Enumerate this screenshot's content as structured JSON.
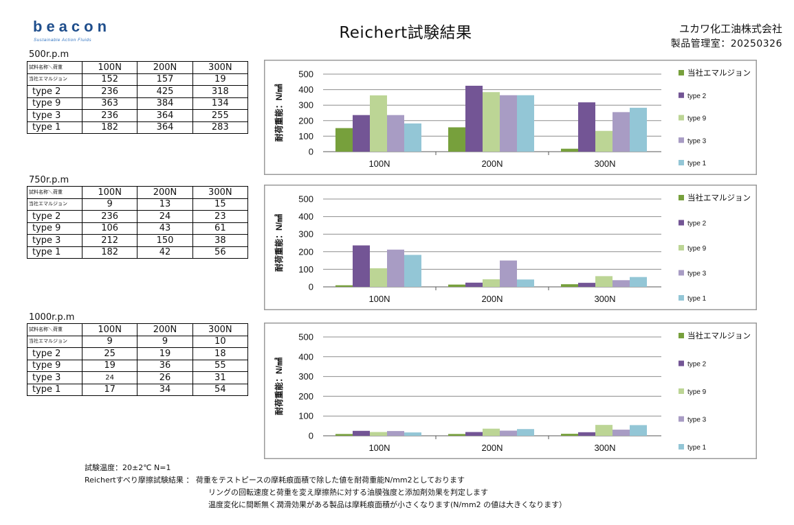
{
  "brand": {
    "name": "beacon",
    "tagline": "Sustainable Action Fluids",
    "color": "#1f4e8c",
    "drop_color": "#2a6fc0"
  },
  "header": {
    "title": "Reichert試験結果",
    "company": "ユカワ化工油株式会社",
    "dept": "製品管理室：20250326"
  },
  "tables": [
    {
      "rpm": "500r.p.m",
      "corner": "試料名称＼荷重",
      "columns": [
        "100N",
        "200N",
        "300N"
      ],
      "rows": [
        {
          "name": "当社エマルジョン",
          "values": [
            "152",
            "157",
            "19"
          ]
        },
        {
          "name": "type 2",
          "values": [
            "236",
            "425",
            "318"
          ]
        },
        {
          "name": "type 9",
          "values": [
            "363",
            "384",
            "134"
          ]
        },
        {
          "name": "type 3",
          "values": [
            "236",
            "364",
            "255"
          ]
        },
        {
          "name": "type 1",
          "values": [
            "182",
            "364",
            "283"
          ]
        }
      ]
    },
    {
      "rpm": "750r.p.m",
      "corner": "試料名称＼荷重",
      "columns": [
        "100N",
        "200N",
        "300N"
      ],
      "rows": [
        {
          "name": "当社エマルジョン",
          "values": [
            "9",
            "13",
            "15"
          ]
        },
        {
          "name": "type 2",
          "values": [
            "236",
            "24",
            "23"
          ]
        },
        {
          "name": "type 9",
          "values": [
            "106",
            "43",
            "61"
          ]
        },
        {
          "name": "type 3",
          "values": [
            "212",
            "150",
            "38"
          ]
        },
        {
          "name": "type 1",
          "values": [
            "182",
            "42",
            "56"
          ]
        }
      ]
    },
    {
      "rpm": "1000r.p.m",
      "corner": "試料名称＼荷重",
      "columns": [
        "100N",
        "200N",
        "300N"
      ],
      "rows": [
        {
          "name": "当社エマルジョン",
          "values": [
            "9",
            "9",
            "10"
          ]
        },
        {
          "name": "type 2",
          "values": [
            "25",
            "19",
            "18"
          ]
        },
        {
          "name": "type 9",
          "values": [
            "19",
            "36",
            "55"
          ]
        },
        {
          "name": "type 3",
          "values": [
            "24",
            "26",
            "31"
          ]
        },
        {
          "name": "type 1",
          "values": [
            "17",
            "34",
            "54"
          ]
        }
      ]
    }
  ],
  "chart_data": [
    {
      "type": "bar",
      "categories": [
        "100N",
        "200N",
        "300N"
      ],
      "ylabel": "耐荷重能：N/㎟",
      "ylim": [
        0,
        500
      ],
      "yticks": [
        "0",
        "100",
        "200",
        "300",
        "400",
        "500"
      ],
      "grid": true,
      "legend": "right",
      "series": [
        {
          "name": "当社エマルジョン",
          "color": "#77a03c",
          "values": [
            152,
            157,
            19
          ]
        },
        {
          "name": "type 2",
          "color": "#735595",
          "values": [
            236,
            425,
            318
          ]
        },
        {
          "name": "type 9",
          "color": "#bcd595",
          "values": [
            363,
            384,
            134
          ]
        },
        {
          "name": "type 3",
          "color": "#a89cc4",
          "values": [
            236,
            364,
            255
          ]
        },
        {
          "name": "type 1",
          "color": "#93c6d6",
          "values": [
            182,
            364,
            283
          ]
        }
      ]
    },
    {
      "type": "bar",
      "categories": [
        "100N",
        "200N",
        "300N"
      ],
      "ylabel": "耐荷重能：N/㎟",
      "ylim": [
        0,
        500
      ],
      "yticks": [
        "0",
        "100",
        "200",
        "300",
        "400",
        "500"
      ],
      "grid": true,
      "legend": "right",
      "series": [
        {
          "name": "当社エマルジョン",
          "color": "#77a03c",
          "values": [
            9,
            13,
            15
          ]
        },
        {
          "name": "type 2",
          "color": "#735595",
          "values": [
            236,
            24,
            23
          ]
        },
        {
          "name": "type 9",
          "color": "#bcd595",
          "values": [
            106,
            43,
            61
          ]
        },
        {
          "name": "type 3",
          "color": "#a89cc4",
          "values": [
            212,
            150,
            38
          ]
        },
        {
          "name": "type 1",
          "color": "#93c6d6",
          "values": [
            182,
            42,
            56
          ]
        }
      ]
    },
    {
      "type": "bar",
      "categories": [
        "100N",
        "200N",
        "300N"
      ],
      "ylabel": "耐荷重能：N/㎟",
      "ylim": [
        0,
        500
      ],
      "yticks": [
        "0",
        "100",
        "200",
        "300",
        "400",
        "500"
      ],
      "grid": true,
      "legend": "right",
      "series": [
        {
          "name": "当社エマルジョン",
          "color": "#77a03c",
          "values": [
            9,
            9,
            10
          ]
        },
        {
          "name": "type 2",
          "color": "#735595",
          "values": [
            25,
            19,
            18
          ]
        },
        {
          "name": "type 9",
          "color": "#bcd595",
          "values": [
            19,
            36,
            55
          ]
        },
        {
          "name": "type 3",
          "color": "#a89cc4",
          "values": [
            24,
            26,
            31
          ]
        },
        {
          "name": "type 1",
          "color": "#93c6d6",
          "values": [
            17,
            34,
            54
          ]
        }
      ]
    }
  ],
  "notes": {
    "line1": "試験温度：20±2℃ N=1",
    "line2": "Reichertすべり摩擦試験結果 ： 荷重をテストピースの摩耗痕面積で除した値を耐荷重能N/mm2としております",
    "line3": "リングの回転速度と荷重を変え摩擦熱に対する油膜強度と添加剤効果を判定します",
    "line4": "温度変化に間断無く潤滑効果がある製品は摩耗痕面積が小さくなります(N/mm2 の値は大きくなります）"
  }
}
